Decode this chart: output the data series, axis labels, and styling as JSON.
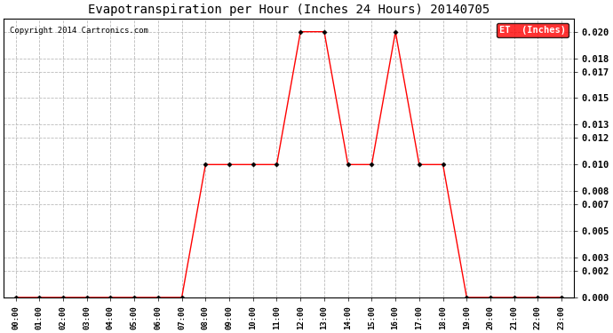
{
  "title": "Evapotranspiration per Hour (Inches 24 Hours) 20140705",
  "copyright": "Copyright 2014 Cartronics.com",
  "legend_label": "ET  (Inches)",
  "legend_bg": "#ff0000",
  "legend_text_color": "#ffffff",
  "line_color": "#ff0000",
  "marker_color": "#000000",
  "background_color": "#ffffff",
  "grid_color": "#bbbbbb",
  "hours": [
    0,
    1,
    2,
    3,
    4,
    5,
    6,
    7,
    8,
    9,
    10,
    11,
    12,
    13,
    14,
    15,
    16,
    17,
    18,
    19,
    20,
    21,
    22,
    23
  ],
  "values": [
    0.0,
    0.0,
    0.0,
    0.0,
    0.0,
    0.0,
    0.0,
    0.0,
    0.01,
    0.01,
    0.01,
    0.01,
    0.02,
    0.02,
    0.01,
    0.01,
    0.02,
    0.01,
    0.01,
    0.0,
    0.0,
    0.0,
    0.0,
    0.0
  ],
  "ylim": [
    0,
    0.021
  ],
  "yticks": [
    0.0,
    0.002,
    0.003,
    0.005,
    0.007,
    0.008,
    0.01,
    0.012,
    0.013,
    0.015,
    0.017,
    0.018,
    0.02
  ]
}
